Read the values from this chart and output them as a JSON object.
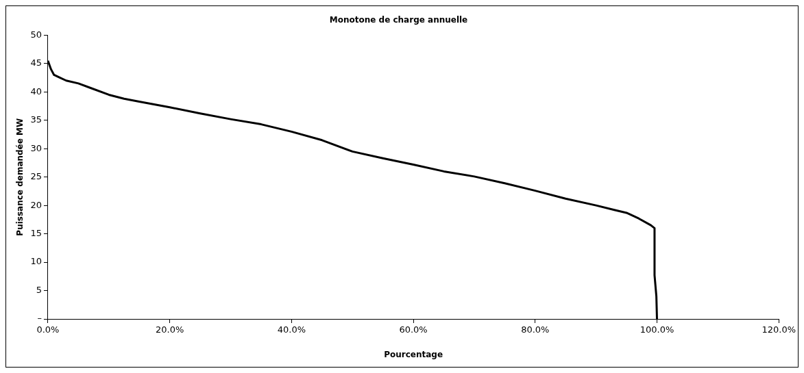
{
  "chart_data": {
    "type": "line",
    "title": "Monotone de charge annuelle",
    "xlabel": "Pourcentage",
    "ylabel": "Puissance demandée MW",
    "marker": "none",
    "line_style": "solid",
    "grid": false,
    "legend": false,
    "xlim": [
      0,
      120
    ],
    "xticks": [
      {
        "value": 0,
        "label": "0.0%"
      },
      {
        "value": 20,
        "label": "20.0%"
      },
      {
        "value": 40,
        "label": "40.0%"
      },
      {
        "value": 60,
        "label": "60.0%"
      },
      {
        "value": 80,
        "label": "80.0%"
      },
      {
        "value": 100,
        "label": "100.0%"
      },
      {
        "value": 120,
        "label": "120.0%"
      }
    ],
    "ylim": [
      0,
      50
    ],
    "yticks": [
      {
        "value": 0,
        "label": "–"
      },
      5,
      10,
      15,
      20,
      25,
      30,
      35,
      40,
      45,
      50
    ],
    "series": [
      {
        "color": "#000000",
        "x": [
          0,
          0.5,
          1,
          2,
          3,
          5,
          7,
          10,
          12.5,
          15,
          20,
          25,
          30,
          35,
          40,
          45,
          50,
          55,
          60,
          65,
          70,
          75,
          80,
          85,
          90,
          93,
          95,
          97,
          99,
          99.6,
          99.6,
          99.9,
          100
        ],
        "values": [
          45.5,
          44,
          43,
          42.5,
          42,
          41.5,
          40.7,
          39.5,
          38.8,
          38.3,
          37.3,
          36.2,
          35.2,
          34.3,
          33,
          31.5,
          29.5,
          28.3,
          27.2,
          26,
          25.1,
          23.9,
          22.6,
          21.2,
          20,
          19.2,
          18.7,
          17.7,
          16.5,
          16,
          7.7,
          4,
          0
        ]
      }
    ]
  }
}
